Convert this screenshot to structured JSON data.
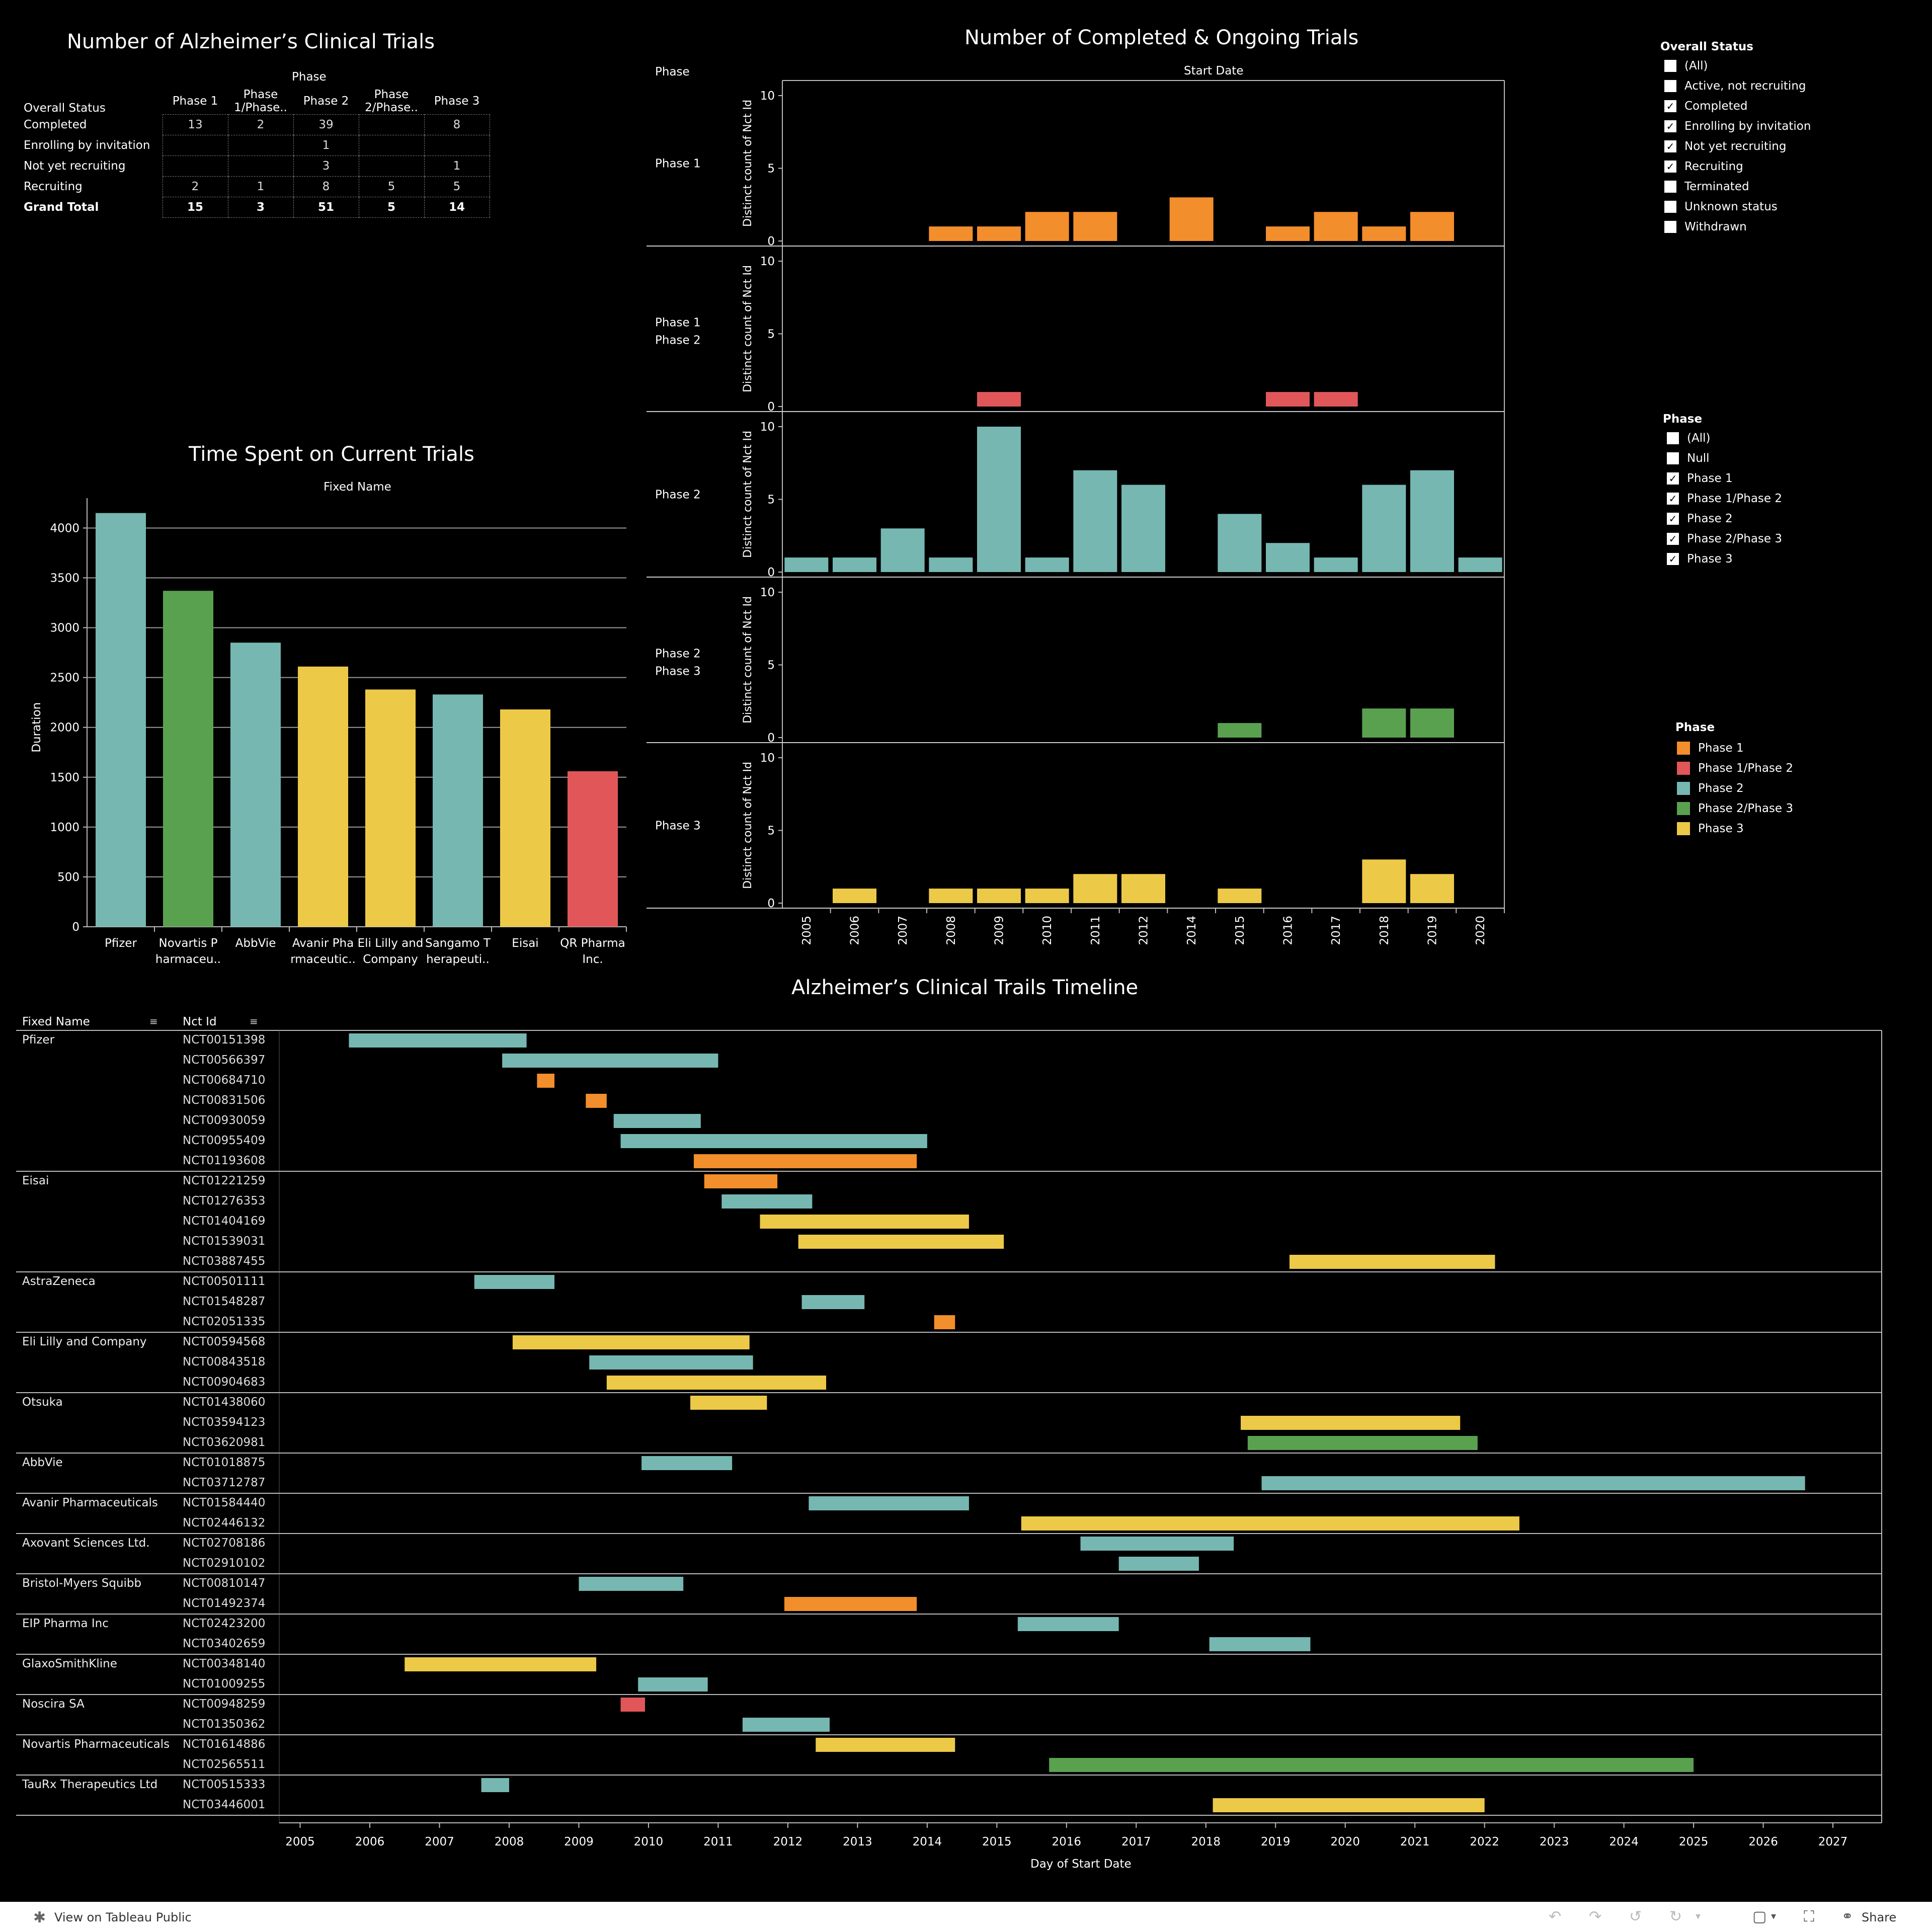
{
  "colors": {
    "phase1": "#F28E2B",
    "phase1_2": "#E15759",
    "phase2": "#76B7B2",
    "phase2_3": "#59A14F",
    "phase3": "#EDC948",
    "bg": "#000000",
    "grid": "#9a9a9a"
  },
  "crosstab": {
    "title": "Number of Alzheimer’s Clinical Trials",
    "col_group": "Phase",
    "row_header": "Overall Status",
    "columns": [
      "Phase 1",
      "Phase 1/Phase..",
      "Phase 2",
      "Phase 2/Phase..",
      "Phase 3"
    ],
    "rows": [
      {
        "label": "Completed",
        "cells": [
          "13",
          "2",
          "39",
          "",
          "8"
        ]
      },
      {
        "label": "Enrolling by invitation",
        "cells": [
          "",
          "",
          "1",
          "",
          ""
        ]
      },
      {
        "label": "Not yet recruiting",
        "cells": [
          "",
          "",
          "3",
          "",
          "1"
        ]
      },
      {
        "label": "Recruiting",
        "cells": [
          "2",
          "1",
          "8",
          "5",
          "5"
        ]
      },
      {
        "label": "Grand Total",
        "cells": [
          "15",
          "3",
          "51",
          "5",
          "14"
        ]
      }
    ]
  },
  "duration_chart": {
    "title": "Time Spent on Current Trials",
    "col_header": "Fixed Name",
    "ylabel": "Duration"
  },
  "trials_chart": {
    "title": "Number of Completed & Ongoing Trials",
    "row_header": "Phase",
    "col_header": "Start Date",
    "ylabel": "Distinct count of Nct Id"
  },
  "status_filter": {
    "title": "Overall Status",
    "items": [
      {
        "label": "(All)",
        "checked": false
      },
      {
        "label": "Active, not recruiting",
        "checked": false
      },
      {
        "label": "Completed",
        "checked": true
      },
      {
        "label": "Enrolling by invitation",
        "checked": true
      },
      {
        "label": "Not yet recruiting",
        "checked": true
      },
      {
        "label": "Recruiting",
        "checked": true
      },
      {
        "label": "Terminated",
        "checked": false
      },
      {
        "label": "Unknown status",
        "checked": false
      },
      {
        "label": "Withdrawn",
        "checked": false
      }
    ]
  },
  "phase_filter": {
    "title": "Phase",
    "items": [
      {
        "label": "(All)",
        "checked": false
      },
      {
        "label": "Null",
        "checked": false
      },
      {
        "label": "Phase 1",
        "checked": true
      },
      {
        "label": "Phase 1/Phase 2",
        "checked": true
      },
      {
        "label": "Phase 2",
        "checked": true
      },
      {
        "label": "Phase 2/Phase 3",
        "checked": true
      },
      {
        "label": "Phase 3",
        "checked": true
      }
    ]
  },
  "legend": {
    "title": "Phase",
    "items": [
      {
        "label": "Phase 1",
        "color": "#F28E2B"
      },
      {
        "label": "Phase 1/Phase 2",
        "color": "#E15759"
      },
      {
        "label": "Phase 2",
        "color": "#76B7B2"
      },
      {
        "label": "Phase 2/Phase 3",
        "color": "#59A14F"
      },
      {
        "label": "Phase 3",
        "color": "#EDC948"
      }
    ]
  },
  "timeline": {
    "title": "Alzheimer’s Clinical Trails Timeline",
    "col_name": "Fixed Name",
    "col_id": "Nct Id",
    "xlabel": "Day of Start Date"
  },
  "footer": {
    "link": "View on Tableau Public",
    "share": "Share"
  },
  "chart_data": [
    {
      "type": "bar",
      "title": "Time Spent on Current Trials",
      "xlabel": "Fixed Name",
      "ylabel": "Duration",
      "ylim": [
        0,
        4300
      ],
      "yticks": [
        0,
        500,
        1000,
        1500,
        2000,
        2500,
        3000,
        3500,
        4000
      ],
      "categories": [
        "Pfizer",
        "Novartis P harmaceu..",
        "AbbVie",
        "Avanir Pha rmaceutic..",
        "Eli Lilly and Company",
        "Sangamo T herapeuti..",
        "Eisai",
        "QR Pharma Inc."
      ],
      "values": [
        4150,
        3370,
        2850,
        2610,
        2380,
        2330,
        2180,
        1560
      ],
      "bar_phases": [
        "phase2",
        "phase2_3",
        "phase2",
        "phase3",
        "phase3",
        "phase2",
        "phase3",
        "phase1_2"
      ]
    },
    {
      "type": "bar",
      "title": "Number of Completed & Ongoing Trials",
      "xlabel": "Start Date",
      "ylabel": "Distinct count of Nct Id",
      "ylim": [
        0,
        10
      ],
      "yticks": [
        0,
        5,
        10
      ],
      "categories": [
        "2005",
        "2006",
        "2007",
        "2008",
        "2009",
        "2010",
        "2011",
        "2012",
        "2014",
        "2015",
        "2016",
        "2017",
        "2018",
        "2019",
        "2020"
      ],
      "series": [
        {
          "name": "Phase 1",
          "panel_label": "Phase 1",
          "key": "phase1",
          "values": [
            0,
            0,
            0,
            1,
            1,
            2,
            2,
            0,
            3,
            0,
            1,
            2,
            1,
            2,
            0
          ]
        },
        {
          "name": "Phase 1/Phase 2",
          "panel_label": "Phase 1/Phase 2",
          "key": "phase1_2",
          "values": [
            0,
            0,
            0,
            0,
            1,
            0,
            0,
            0,
            0,
            0,
            1,
            1,
            0,
            0,
            0
          ]
        },
        {
          "name": "Phase 2",
          "panel_label": "Phase 2",
          "key": "phase2",
          "values": [
            1,
            1,
            3,
            1,
            10,
            1,
            7,
            6,
            0,
            4,
            2,
            1,
            6,
            7,
            1
          ]
        },
        {
          "name": "Phase 2/Phase 3",
          "panel_label": "Phase 2/Phase 3",
          "key": "phase2_3",
          "values": [
            0,
            0,
            0,
            0,
            0,
            0,
            0,
            0,
            0,
            1,
            0,
            0,
            2,
            2,
            0
          ]
        },
        {
          "name": "Phase 3",
          "panel_label": "Phase 3",
          "key": "phase3",
          "values": [
            0,
            1,
            0,
            1,
            1,
            1,
            2,
            2,
            0,
            1,
            0,
            0,
            3,
            2,
            0
          ]
        }
      ]
    },
    {
      "type": "gantt",
      "title": "Alzheimer’s Clinical Trails Timeline",
      "xlabel": "Day of Start Date",
      "x_ticks": [
        "2005",
        "2006",
        "2007",
        "2008",
        "2009",
        "2010",
        "2011",
        "2012",
        "2013",
        "2014",
        "2015",
        "2016",
        "2017",
        "2018",
        "2019",
        "2020",
        "2021",
        "2022",
        "2023",
        "2024",
        "2025",
        "2026",
        "2027"
      ],
      "xlim": [
        2004.7,
        2027.7
      ],
      "groups": [
        {
          "name": "Pfizer",
          "trials": [
            {
              "id": "NCT00151398",
              "start": 2005.7,
              "end": 2008.25,
              "phase": "phase2"
            },
            {
              "id": "NCT00566397",
              "start": 2007.9,
              "end": 2011.0,
              "phase": "phase2"
            },
            {
              "id": "NCT00684710",
              "start": 2008.4,
              "end": 2008.65,
              "phase": "phase1"
            },
            {
              "id": "NCT00831506",
              "start": 2009.1,
              "end": 2009.4,
              "phase": "phase1"
            },
            {
              "id": "NCT00930059",
              "start": 2009.5,
              "end": 2010.75,
              "phase": "phase2"
            },
            {
              "id": "NCT00955409",
              "start": 2009.6,
              "end": 2014.0,
              "phase": "phase2"
            },
            {
              "id": "NCT01193608",
              "start": 2010.65,
              "end": 2013.85,
              "phase": "phase1"
            }
          ]
        },
        {
          "name": "Eisai",
          "trials": [
            {
              "id": "NCT01221259",
              "start": 2010.8,
              "end": 2011.85,
              "phase": "phase1"
            },
            {
              "id": "NCT01276353",
              "start": 2011.05,
              "end": 2012.35,
              "phase": "phase2"
            },
            {
              "id": "NCT01404169",
              "start": 2011.6,
              "end": 2014.6,
              "phase": "phase3"
            },
            {
              "id": "NCT01539031",
              "start": 2012.15,
              "end": 2015.1,
              "phase": "phase3"
            },
            {
              "id": "NCT03887455",
              "start": 2019.2,
              "end": 2022.15,
              "phase": "phase3"
            }
          ]
        },
        {
          "name": "AstraZeneca",
          "trials": [
            {
              "id": "NCT00501111",
              "start": 2007.5,
              "end": 2008.65,
              "phase": "phase2"
            },
            {
              "id": "NCT01548287",
              "start": 2012.2,
              "end": 2013.1,
              "phase": "phase2"
            },
            {
              "id": "NCT02051335",
              "start": 2014.1,
              "end": 2014.4,
              "phase": "phase1"
            }
          ]
        },
        {
          "name": "Eli Lilly and Company",
          "trials": [
            {
              "id": "NCT00594568",
              "start": 2008.05,
              "end": 2011.45,
              "phase": "phase3"
            },
            {
              "id": "NCT00843518",
              "start": 2009.15,
              "end": 2011.5,
              "phase": "phase2"
            },
            {
              "id": "NCT00904683",
              "start": 2009.4,
              "end": 2012.55,
              "phase": "phase3"
            }
          ]
        },
        {
          "name": "Otsuka",
          "trials": [
            {
              "id": "NCT01438060",
              "start": 2010.6,
              "end": 2011.7,
              "phase": "phase3"
            },
            {
              "id": "NCT03594123",
              "start": 2018.5,
              "end": 2021.65,
              "phase": "phase3"
            },
            {
              "id": "NCT03620981",
              "start": 2018.6,
              "end": 2021.9,
              "phase": "phase2_3"
            }
          ]
        },
        {
          "name": "AbbVie",
          "trials": [
            {
              "id": "NCT01018875",
              "start": 2009.9,
              "end": 2011.2,
              "phase": "phase2"
            },
            {
              "id": "NCT03712787",
              "start": 2018.8,
              "end": 2026.6,
              "phase": "phase2"
            }
          ]
        },
        {
          "name": "Avanir Pharmaceuticals",
          "trials": [
            {
              "id": "NCT01584440",
              "start": 2012.3,
              "end": 2014.6,
              "phase": "phase2"
            },
            {
              "id": "NCT02446132",
              "start": 2015.35,
              "end": 2022.5,
              "phase": "phase3"
            }
          ]
        },
        {
          "name": "Axovant Sciences Ltd.",
          "trials": [
            {
              "id": "NCT02708186",
              "start": 2016.2,
              "end": 2018.4,
              "phase": "phase2"
            },
            {
              "id": "NCT02910102",
              "start": 2016.75,
              "end": 2017.9,
              "phase": "phase2"
            }
          ]
        },
        {
          "name": "Bristol-Myers Squibb",
          "trials": [
            {
              "id": "NCT00810147",
              "start": 2009.0,
              "end": 2010.5,
              "phase": "phase2"
            },
            {
              "id": "NCT01492374",
              "start": 2011.95,
              "end": 2013.85,
              "phase": "phase1"
            }
          ]
        },
        {
          "name": "EIP Pharma Inc",
          "trials": [
            {
              "id": "NCT02423200",
              "start": 2015.3,
              "end": 2016.75,
              "phase": "phase2"
            },
            {
              "id": "NCT03402659",
              "start": 2018.05,
              "end": 2019.5,
              "phase": "phase2"
            }
          ]
        },
        {
          "name": "GlaxoSmithKline",
          "trials": [
            {
              "id": "NCT00348140",
              "start": 2006.5,
              "end": 2009.25,
              "phase": "phase3"
            },
            {
              "id": "NCT01009255",
              "start": 2009.85,
              "end": 2010.85,
              "phase": "phase2"
            }
          ]
        },
        {
          "name": "Noscira SA",
          "trials": [
            {
              "id": "NCT00948259",
              "start": 2009.6,
              "end": 2009.95,
              "phase": "phase1_2"
            },
            {
              "id": "NCT01350362",
              "start": 2011.35,
              "end": 2012.6,
              "phase": "phase2"
            }
          ]
        },
        {
          "name": "Novartis Pharmaceuticals",
          "trials": [
            {
              "id": "NCT01614886",
              "start": 2012.4,
              "end": 2014.4,
              "phase": "phase3"
            },
            {
              "id": "NCT02565511",
              "start": 2015.75,
              "end": 2025.0,
              "phase": "phase2_3"
            }
          ]
        },
        {
          "name": "TauRx Therapeutics Ltd",
          "trials": [
            {
              "id": "NCT00515333",
              "start": 2007.6,
              "end": 2008.0,
              "phase": "phase2"
            },
            {
              "id": "NCT03446001",
              "start": 2018.1,
              "end": 2022.0,
              "phase": "phase3"
            }
          ]
        }
      ]
    }
  ]
}
